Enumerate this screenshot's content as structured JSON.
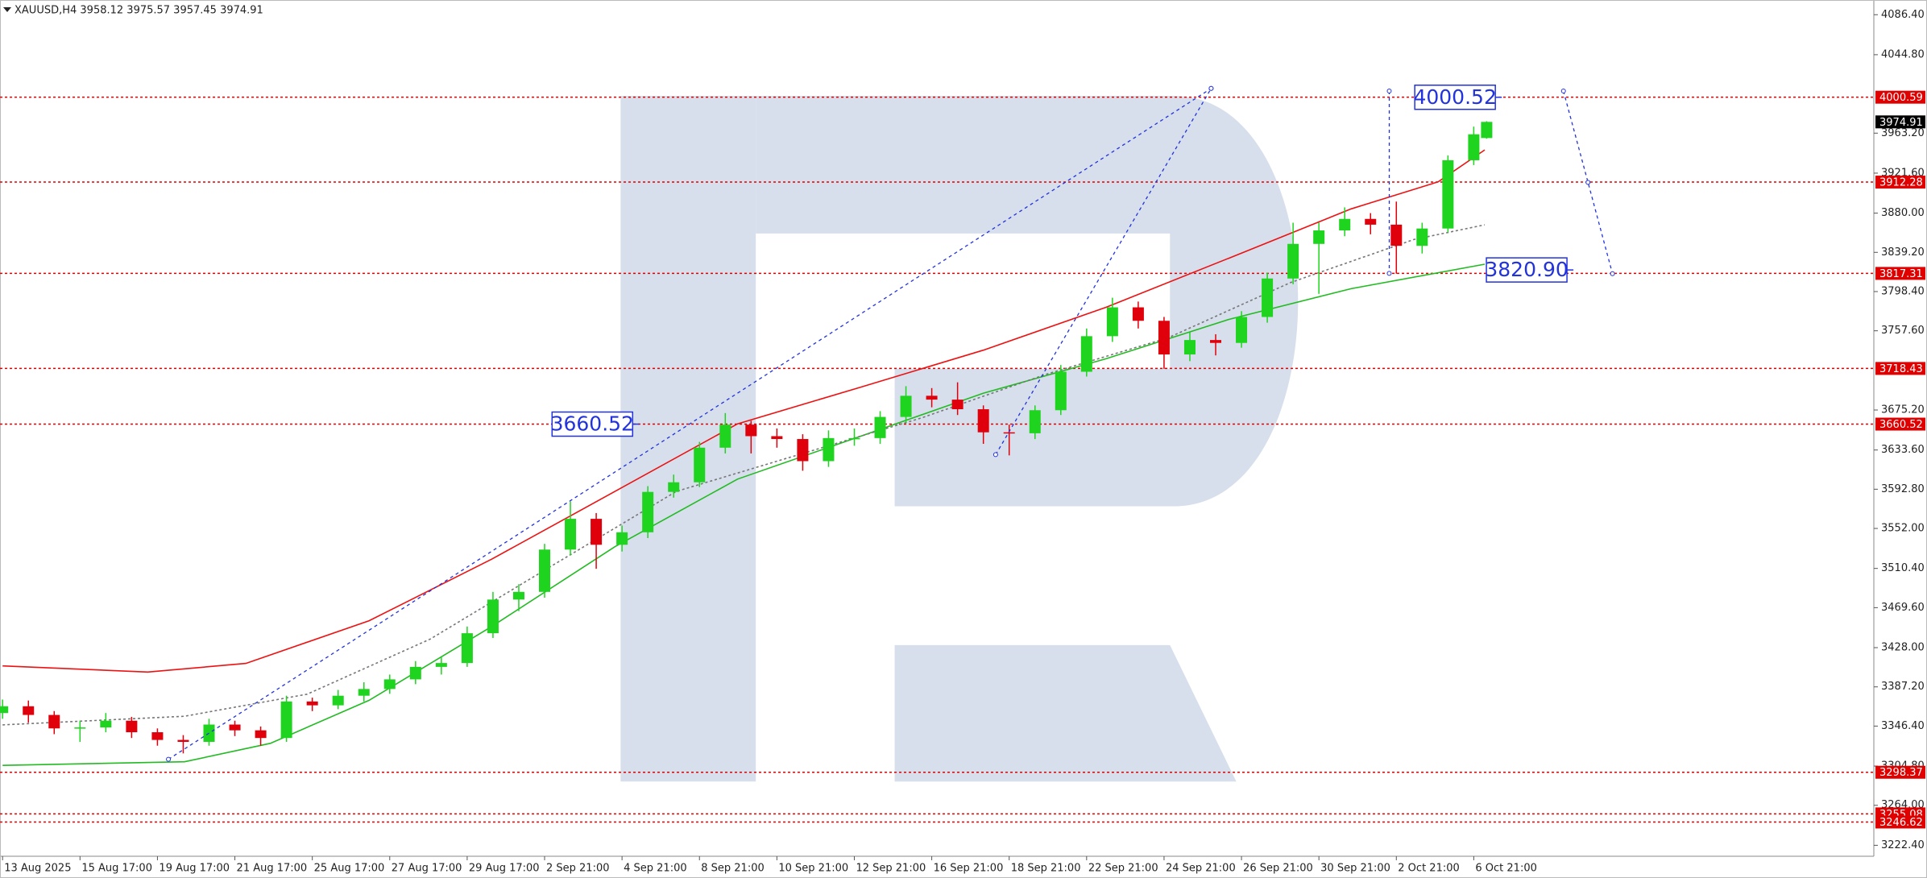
{
  "chart_data": {
    "type": "candlestick",
    "title": "XAUUSD,H4  3958.12 3975.57 3957.45 3974.91",
    "up_color": "#1ed41e",
    "down_color": "#e0000b",
    "x": [
      0,
      4,
      8,
      12,
      16,
      20,
      24,
      28,
      32,
      36,
      40,
      44,
      48,
      52,
      56,
      60,
      64,
      68,
      72,
      76,
      80,
      84,
      88,
      92,
      96,
      100,
      104,
      108,
      112,
      116,
      120,
      124,
      128,
      132,
      136,
      140,
      144,
      148,
      152,
      156,
      160,
      164,
      168,
      172,
      176,
      180,
      184,
      188,
      192,
      196,
      200,
      204,
      208,
      212,
      216,
      220,
      224,
      228,
      230
    ],
    "open": [
      3360,
      3367,
      3358,
      3344,
      3345,
      3352,
      3340,
      3332,
      3330,
      3348,
      3342,
      3334,
      3372,
      3368,
      3378,
      3385,
      3395,
      3408,
      3412,
      3443,
      3478,
      3486,
      3530,
      3562,
      3535,
      3548,
      3590,
      3600,
      3636,
      3660,
      3648,
      3645,
      3622,
      3646,
      3646,
      3668,
      3690,
      3686,
      3676,
      3652,
      3651,
      3675,
      3715,
      3752,
      3782,
      3768,
      3733,
      3748,
      3745,
      3772,
      3812,
      3848,
      3862,
      3874,
      3868,
      3846,
      3864,
      3935,
      3958.12
    ],
    "high": [
      3374,
      3373,
      3362,
      3352,
      3360,
      3356,
      3344,
      3337,
      3354,
      3352,
      3346,
      3378,
      3376,
      3384,
      3392,
      3400,
      3414,
      3418,
      3450,
      3486,
      3494,
      3536,
      3580,
      3568,
      3555,
      3596,
      3608,
      3642,
      3672,
      3664,
      3656,
      3650,
      3654,
      3656,
      3674,
      3700,
      3698,
      3704,
      3680,
      3660,
      3680,
      3722,
      3760,
      3792,
      3788,
      3772,
      3756,
      3754,
      3778,
      3818,
      3870,
      3870,
      3886,
      3880,
      3892,
      3870,
      3940,
      3970,
      3975.57
    ],
    "low": [
      3354,
      3350,
      3338,
      3330,
      3340,
      3334,
      3326,
      3318,
      3326,
      3336,
      3326,
      3330,
      3362,
      3364,
      3372,
      3380,
      3390,
      3400,
      3408,
      3438,
      3466,
      3480,
      3524,
      3510,
      3528,
      3542,
      3584,
      3595,
      3630,
      3630,
      3636,
      3612,
      3616,
      3638,
      3640,
      3662,
      3678,
      3670,
      3640,
      3628,
      3645,
      3670,
      3710,
      3746,
      3760,
      3718,
      3726,
      3732,
      3740,
      3766,
      3806,
      3796,
      3856,
      3858,
      3817,
      3838,
      3860,
      3930,
      3957.45
    ],
    "close": [
      3367,
      3358,
      3344,
      3345,
      3352,
      3340,
      3332,
      3330,
      3348,
      3342,
      3334,
      3372,
      3368,
      3378,
      3385,
      3395,
      3408,
      3412,
      3443,
      3478,
      3486,
      3530,
      3562,
      3535,
      3548,
      3590,
      3600,
      3636,
      3660,
      3648,
      3645,
      3622,
      3646,
      3646,
      3668,
      3690,
      3686,
      3676,
      3652,
      3651,
      3675,
      3715,
      3752,
      3782,
      3768,
      3733,
      3748,
      3745,
      3772,
      3812,
      3848,
      3862,
      3874,
      3868,
      3846,
      3864,
      3935,
      3962,
      3974.91
    ],
    "overlays": [
      {
        "color": "#ee1111",
        "dashed": false,
        "x": [
          0,
          22.5,
          37.7,
          56.8,
          75.8,
          94.9,
          113.9,
          133,
          152,
          171,
          190,
          209,
          222.5,
          229.7
        ],
        "values": [
          3409,
          3402.6,
          3411.6,
          3456,
          3520,
          3590.5,
          3660.8,
          3699,
          3737.5,
          3782,
          3833,
          3884.4,
          3912.6,
          3945.8
        ]
      },
      {
        "color": "#22bb22",
        "dashed": false,
        "x": [
          0,
          28.2,
          41.5,
          56.8,
          75.8,
          94.9,
          113.9,
          133,
          152,
          171,
          190,
          209,
          229.7
        ],
        "values": [
          3305.5,
          3309.3,
          3328.5,
          3373.2,
          3450,
          3533,
          3603.3,
          3648,
          3692.7,
          3728.5,
          3769.4,
          3801.4,
          3826.9
        ]
      },
      {
        "color": "#777777",
        "dashed": true,
        "x": [
          0,
          28.2,
          47.2,
          66.3,
          85.3,
          104.4,
          123.4,
          142.5,
          161.5,
          180.6,
          199.6,
          218.7,
          229.7
        ],
        "values": [
          3347.7,
          3356.6,
          3379.6,
          3437,
          3513.8,
          3590.5,
          3628.8,
          3667.2,
          3711.9,
          3750.2,
          3807.8,
          3852.5,
          3867.8
        ]
      }
    ],
    "forecast_color": "#2233dd",
    "forecast_lines": [
      {
        "x": [
          25.7,
          187.3
        ],
        "values": [
          3311.9,
          4009.7
        ]
      },
      {
        "x": [
          153.9,
          187.3
        ],
        "values": [
          3628.8,
          4009.7
        ]
      },
      {
        "x": [
          214.9,
          214.9
        ],
        "values": [
          4007,
          3817.3
        ]
      },
      {
        "x": [
          241.9,
          245.7,
          249.5
        ],
        "values": [
          4007,
          3912,
          3817
        ]
      }
    ],
    "annotations": [
      {
        "value": 3660.52,
        "label": "3660.52",
        "x": 91.4
      },
      {
        "value": 4000.52,
        "label": "4000.52",
        "x": 225.1
      },
      {
        "value": 3820.9,
        "label": "3820.90",
        "x": 236.2
      }
    ],
    "level_color": "#e00000",
    "levels": [
      4000.59,
      3912.28,
      3817.31,
      3718.43,
      3660.52,
      3298.37,
      3255.08,
      3246.62
    ],
    "last_price": 3974.91,
    "xlim": [
      -0.4,
      290
    ],
    "ylim": [
      3211.0,
      4101.7
    ],
    "xticks": [
      {
        "value": 0,
        "label": "13 Aug 2025"
      },
      {
        "value": 12,
        "label": "15 Aug 17:00"
      },
      {
        "value": 24,
        "label": "19 Aug 17:00"
      },
      {
        "value": 36,
        "label": "21 Aug 17:00"
      },
      {
        "value": 48,
        "label": "25 Aug 17:00"
      },
      {
        "value": 60,
        "label": "27 Aug 17:00"
      },
      {
        "value": 72,
        "label": "29 Aug 17:00"
      },
      {
        "value": 84,
        "label": "2 Sep 21:00"
      },
      {
        "value": 96,
        "label": "4 Sep 21:00"
      },
      {
        "value": 108,
        "label": "8 Sep 21:00"
      },
      {
        "value": 120,
        "label": "10 Sep 21:00"
      },
      {
        "value": 132,
        "label": "12 Sep 21:00"
      },
      {
        "value": 144,
        "label": "16 Sep 21:00"
      },
      {
        "value": 156,
        "label": "18 Sep 21:00"
      },
      {
        "value": 168,
        "label": "22 Sep 21:00"
      },
      {
        "value": 180,
        "label": "24 Sep 21:00"
      },
      {
        "value": 192,
        "label": "26 Sep 21:00"
      },
      {
        "value": 204,
        "label": "30 Sep 21:00"
      },
      {
        "value": 216,
        "label": "2 Oct 21:00"
      },
      {
        "value": 228,
        "label": "6 Oct 21:00"
      }
    ],
    "yticks": [
      {
        "value": 4086.4,
        "label": "4086.40"
      },
      {
        "value": 4044.8,
        "label": "4044.80"
      },
      {
        "value": 3963.2,
        "label": "3963.20"
      },
      {
        "value": 3921.6,
        "label": "3921.60"
      },
      {
        "value": 3880,
        "label": "3880.00"
      },
      {
        "value": 3839.2,
        "label": "3839.20"
      },
      {
        "value": 3798.4,
        "label": "3798.40"
      },
      {
        "value": 3757.6,
        "label": "3757.60"
      },
      {
        "value": 3675.2,
        "label": "3675.20"
      },
      {
        "value": 3633.6,
        "label": "3633.60"
      },
      {
        "value": 3592.8,
        "label": "3592.80"
      },
      {
        "value": 3552,
        "label": "3552.00"
      },
      {
        "value": 3510.4,
        "label": "3510.40"
      },
      {
        "value": 3469.6,
        "label": "3469.60"
      },
      {
        "value": 3428,
        "label": "3428.00"
      },
      {
        "value": 3387.2,
        "label": "3387.20"
      },
      {
        "value": 3346.4,
        "label": "3346.40"
      },
      {
        "value": 3304.8,
        "label": "3304.80"
      },
      {
        "value": 3264,
        "label": "3264.00"
      },
      {
        "value": 3222.4,
        "label": "3222.40"
      }
    ]
  }
}
